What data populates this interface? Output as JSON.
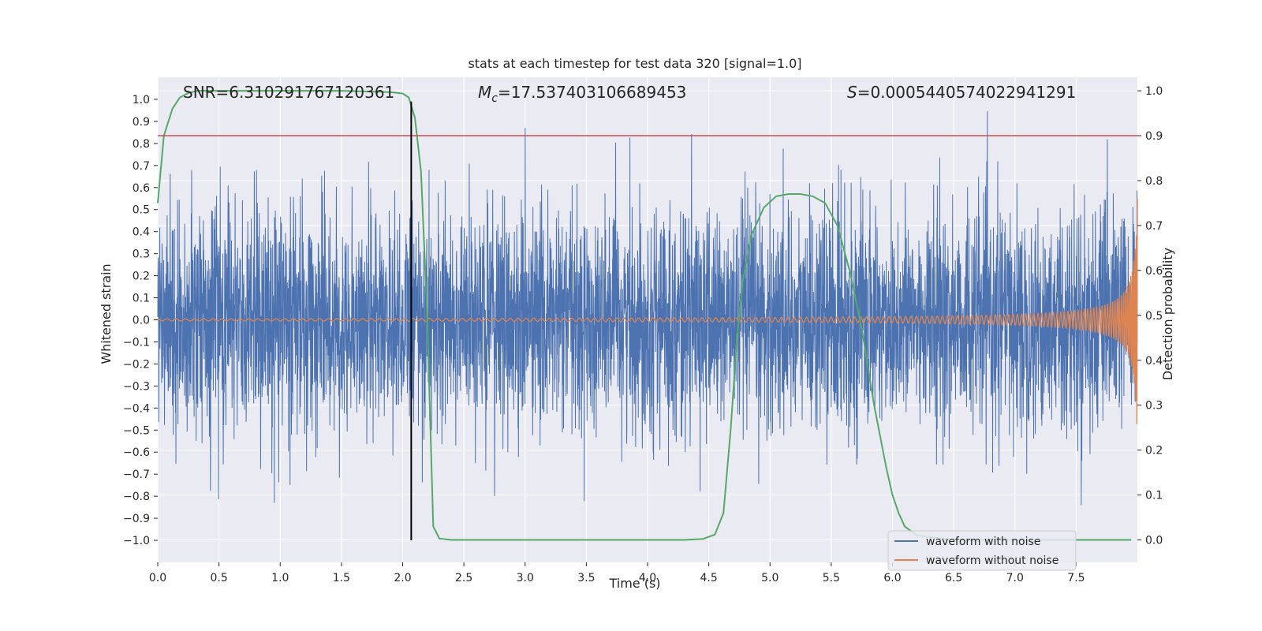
{
  "chart_data": {
    "type": "line",
    "title": "stats at each timestep for test data 320 [signal=1.0]",
    "xlabel": "Time (s)",
    "ylabel_left": "Whitened strain",
    "ylabel_right": "Detection probability",
    "xlim": [
      0.0,
      8.0
    ],
    "ylim_left": [
      -1.1,
      1.1
    ],
    "ylim_right": [
      -0.05,
      1.03
    ],
    "x_ticks": [
      0.0,
      0.5,
      1.0,
      1.5,
      2.0,
      2.5,
      3.0,
      3.5,
      4.0,
      4.5,
      5.0,
      5.5,
      6.0,
      6.5,
      7.0,
      7.5
    ],
    "x_tick_labels": [
      "0.0",
      "0.5",
      "1.0",
      "1.5",
      "2.0",
      "2.5",
      "3.0",
      "3.5",
      "4.0",
      "4.5",
      "5.0",
      "5.5",
      "6.0",
      "6.5",
      "7.0",
      "7.5"
    ],
    "y_left_ticks": [
      1.0,
      0.9,
      0.8,
      0.7,
      0.6,
      0.5,
      0.4,
      0.3,
      0.2,
      0.1,
      0.0,
      -0.1,
      -0.2,
      -0.3,
      -0.4,
      -0.5,
      -0.6,
      -0.7,
      -0.8,
      -0.9,
      -1.0
    ],
    "y_left_tick_labels": [
      "1.0",
      "0.9",
      "0.8",
      "0.7",
      "0.6",
      "0.5",
      "0.4",
      "0.3",
      "0.2",
      "0.1",
      "0.0",
      "−0.1",
      "−0.2",
      "−0.3",
      "−0.4",
      "−0.5",
      "−0.6",
      "−0.7",
      "−0.8",
      "−0.9",
      "−1.0"
    ],
    "y_right_ticks": [
      1.0,
      0.9,
      0.8,
      0.7,
      0.6,
      0.5,
      0.4,
      0.3,
      0.2,
      0.1,
      0.0
    ],
    "y_right_tick_labels": [
      "1.0",
      "0.9",
      "0.8",
      "0.7",
      "0.6",
      "0.5",
      "0.4",
      "0.3",
      "0.2",
      "0.1",
      "0.0"
    ],
    "grid": true,
    "annotations": {
      "snr": "SNR=6.310291767120361",
      "mc_symbol": "M",
      "mc_subscript": "c",
      "mc_value": "=17.537403106689453",
      "s_symbol": "S",
      "s_value": "=0.0005440574022941291"
    },
    "threshold_line": {
      "axis": "right",
      "value": 0.9,
      "color": "#c44e52"
    },
    "vertical_marker": {
      "x": 2.07,
      "color": "#000000"
    },
    "series": [
      {
        "name": "waveform with noise",
        "axis": "left",
        "color": "#4c72b0",
        "kind": "noise",
        "x_range": [
          0.0,
          8.0
        ],
        "typical_amplitude": 0.45,
        "max_amplitude": 0.95
      },
      {
        "name": "waveform without noise",
        "axis": "left",
        "color": "#dd8452",
        "kind": "chirp",
        "x_range": [
          0.0,
          8.0
        ],
        "amplitude_start": 0.005,
        "amplitude_end": 0.55,
        "coalescence_time": 8.02
      },
      {
        "name": "detection probability",
        "axis": "right",
        "color": "#55a868",
        "kind": "probability",
        "x": [
          0.0,
          0.05,
          0.12,
          0.18,
          0.25,
          0.32,
          0.5,
          1.0,
          1.5,
          1.9,
          2.0,
          2.05,
          2.1,
          2.15,
          2.2,
          2.25,
          2.3,
          2.4,
          3.0,
          3.5,
          4.0,
          4.3,
          4.45,
          4.55,
          4.62,
          4.68,
          4.73,
          4.78,
          4.85,
          4.95,
          5.05,
          5.15,
          5.25,
          5.35,
          5.45,
          5.55,
          5.65,
          5.75,
          5.85,
          5.95,
          6.0,
          6.05,
          6.1,
          6.2,
          6.5,
          7.0,
          7.5,
          7.95
        ],
        "y": [
          0.75,
          0.9,
          0.96,
          0.985,
          0.995,
          1.0,
          1.0,
          1.0,
          1.0,
          0.997,
          0.994,
          0.985,
          0.94,
          0.82,
          0.5,
          0.03,
          0.003,
          0.0,
          0.0,
          0.0,
          0.0,
          0.0,
          0.002,
          0.012,
          0.06,
          0.25,
          0.45,
          0.58,
          0.68,
          0.74,
          0.765,
          0.77,
          0.77,
          0.765,
          0.75,
          0.7,
          0.6,
          0.47,
          0.3,
          0.16,
          0.1,
          0.06,
          0.03,
          0.01,
          0.0,
          0.0,
          0.0,
          0.0
        ]
      }
    ],
    "legend": {
      "placement": "lower-right",
      "entries": [
        {
          "label": "waveform with noise",
          "color": "#4c72b0"
        },
        {
          "label": "waveform without noise",
          "color": "#dd8452"
        }
      ]
    }
  }
}
